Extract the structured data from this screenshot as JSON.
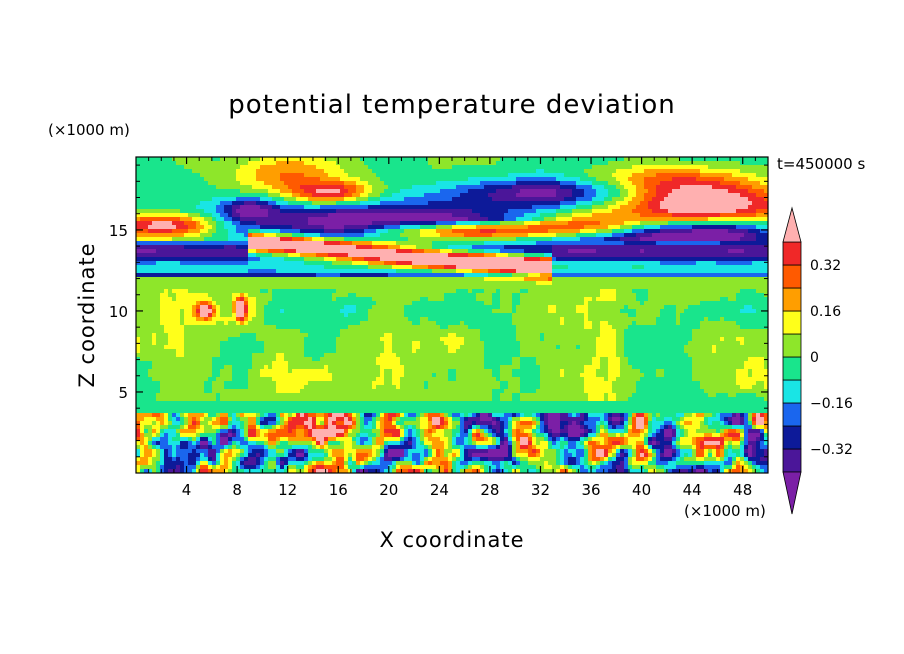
{
  "chart_data": {
    "type": "heatmap",
    "title": "potential temperature deviation",
    "xlabel": "X coordinate",
    "ylabel": "Z coordinate",
    "x_unit_label": "(×1000 m)",
    "y_unit_label": "(×1000 m)",
    "time_label": "t=450000 s",
    "xlim": [
      0,
      50
    ],
    "ylim": [
      0,
      19.5
    ],
    "x_ticks": [
      4,
      8,
      12,
      16,
      20,
      24,
      28,
      32,
      36,
      40,
      44,
      48
    ],
    "y_ticks": [
      5,
      10,
      15
    ],
    "x_tick_labels": [
      "4",
      "8",
      "12",
      "16",
      "20",
      "24",
      "28",
      "32",
      "36",
      "40",
      "44",
      "48"
    ],
    "y_tick_labels": [
      "5",
      "10",
      "15"
    ],
    "colorbar": {
      "levels": [
        -0.4,
        -0.32,
        -0.24,
        -0.16,
        -0.08,
        0,
        0.08,
        0.16,
        0.24,
        0.32,
        0.4
      ],
      "colors": [
        "#7b1fa6",
        "#4b1699",
        "#0d1a99",
        "#1a66ee",
        "#19e5e5",
        "#19e58c",
        "#8ee62a",
        "#ffff1a",
        "#ff9e00",
        "#ff5a00",
        "#f02828",
        "#ffb0b0"
      ],
      "labels": [
        {
          "text": "-0.32",
          "value": -0.32
        },
        {
          "text": "-0.16",
          "value": -0.16
        },
        {
          "text": "0",
          "value": 0
        },
        {
          "text": "0.16",
          "value": 0.16
        },
        {
          "text": "0.32",
          "value": 0.32
        }
      ],
      "extend": "both"
    }
  }
}
